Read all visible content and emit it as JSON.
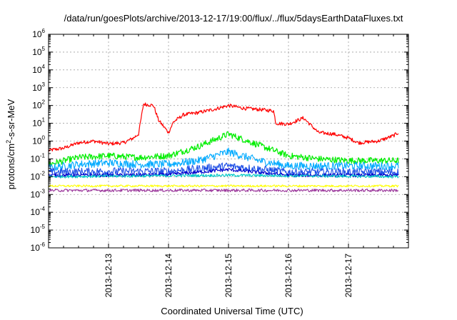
{
  "chart_data": {
    "type": "line",
    "title": "/data/run/goesPlots/archive/2013-12-17/19:00/flux/../flux/5daysEarthDataFluxes.txt",
    "xlabel": "Coordinated Universal Time (UTC)",
    "ylabel": {
      "base": "protons/cm",
      "sup": "2",
      "rest": "-s-sr-MeV"
    },
    "x_type": "time",
    "xlim": [
      "2013-12-12T00:00",
      "2013-12-18T00:00"
    ],
    "x_ticks": [
      {
        "label": "2013-12-13",
        "at": "2013-12-13T00:00"
      },
      {
        "label": "2013-12-14",
        "at": "2013-12-14T00:00"
      },
      {
        "label": "2013-12-15",
        "at": "2013-12-15T00:00"
      },
      {
        "label": "2013-12-16",
        "at": "2013-12-16T00:00"
      },
      {
        "label": "2013-12-17",
        "at": "2013-12-17T00:00"
      }
    ],
    "y_scale": "log",
    "ylim": [
      1e-06,
      1000000
    ],
    "y_ticks": [
      {
        "base": "10",
        "exp": "-6"
      },
      {
        "base": "10",
        "exp": "-5"
      },
      {
        "base": "10",
        "exp": "-4"
      },
      {
        "base": "10",
        "exp": "-3"
      },
      {
        "base": "10",
        "exp": "-2"
      },
      {
        "base": "10",
        "exp": "-1"
      },
      {
        "base": "10",
        "exp": "0"
      },
      {
        "base": "10",
        "exp": "1"
      },
      {
        "base": "10",
        "exp": "2"
      },
      {
        "base": "10",
        "exp": "3"
      },
      {
        "base": "10",
        "exp": "4"
      },
      {
        "base": "10",
        "exp": "5"
      },
      {
        "base": "10",
        "exp": "6"
      }
    ],
    "grid": true,
    "legend": "none",
    "series": [
      {
        "color": "#ff0000",
        "noise": 0.1,
        "points": [
          [
            "2013-12-12T00:00",
            0.3
          ],
          [
            "2013-12-12T06:00",
            0.4
          ],
          [
            "2013-12-12T12:00",
            0.8
          ],
          [
            "2013-12-12T18:00",
            1.0
          ],
          [
            "2013-12-13T00:00",
            0.7
          ],
          [
            "2013-12-13T06:00",
            0.8
          ],
          [
            "2013-12-13T10:00",
            1.5
          ],
          [
            "2013-12-13T12:00",
            2.5
          ],
          [
            "2013-12-13T14:00",
            120
          ],
          [
            "2013-12-13T18:00",
            100
          ],
          [
            "2013-12-13T20:00",
            15
          ],
          [
            "2013-12-14T00:00",
            3
          ],
          [
            "2013-12-14T02:00",
            12
          ],
          [
            "2013-12-14T06:00",
            30
          ],
          [
            "2013-12-14T12:00",
            40
          ],
          [
            "2013-12-14T18:00",
            60
          ],
          [
            "2013-12-15T00:00",
            100
          ],
          [
            "2013-12-15T06:00",
            70
          ],
          [
            "2013-12-15T12:00",
            60
          ],
          [
            "2013-12-15T18:00",
            50
          ],
          [
            "2013-12-15T19:00",
            10
          ],
          [
            "2013-12-16T00:00",
            9
          ],
          [
            "2013-12-16T06:00",
            20
          ],
          [
            "2013-12-16T12:00",
            3
          ],
          [
            "2013-12-16T18:00",
            2.5
          ],
          [
            "2013-12-17T00:00",
            1.5
          ],
          [
            "2013-12-17T04:00",
            0.8
          ],
          [
            "2013-12-17T12:00",
            1.0
          ],
          [
            "2013-12-17T18:00",
            2.0
          ],
          [
            "2013-12-17T20:00",
            3.0
          ]
        ]
      },
      {
        "color": "#00ee00",
        "noise": 0.18,
        "points": [
          [
            "2013-12-12T00:00",
            0.05
          ],
          [
            "2013-12-12T12:00",
            0.12
          ],
          [
            "2013-12-13T00:00",
            0.15
          ],
          [
            "2013-12-13T12:00",
            0.12
          ],
          [
            "2013-12-14T00:00",
            0.15
          ],
          [
            "2013-12-14T12:00",
            0.5
          ],
          [
            "2013-12-15T00:00",
            2.5
          ],
          [
            "2013-12-15T12:00",
            0.6
          ],
          [
            "2013-12-16T00:00",
            0.15
          ],
          [
            "2013-12-16T12:00",
            0.1
          ],
          [
            "2013-12-17T00:00",
            0.08
          ],
          [
            "2013-12-17T20:00",
            0.08
          ]
        ]
      },
      {
        "color": "#00aaff",
        "noise": 0.22,
        "points": [
          [
            "2013-12-12T00:00",
            0.03
          ],
          [
            "2013-12-12T12:00",
            0.05
          ],
          [
            "2013-12-13T00:00",
            0.06
          ],
          [
            "2013-12-13T12:00",
            0.05
          ],
          [
            "2013-12-14T00:00",
            0.05
          ],
          [
            "2013-12-14T12:00",
            0.08
          ],
          [
            "2013-12-15T00:00",
            0.25
          ],
          [
            "2013-12-15T12:00",
            0.08
          ],
          [
            "2013-12-16T00:00",
            0.04
          ],
          [
            "2013-12-17T00:00",
            0.04
          ],
          [
            "2013-12-17T20:00",
            0.04
          ]
        ]
      },
      {
        "color": "#1e50e6",
        "noise": 0.22,
        "points": [
          [
            "2013-12-12T00:00",
            0.018
          ],
          [
            "2013-12-13T00:00",
            0.02
          ],
          [
            "2013-12-14T00:00",
            0.02
          ],
          [
            "2013-12-15T00:00",
            0.04
          ],
          [
            "2013-12-16T00:00",
            0.018
          ],
          [
            "2013-12-17T00:00",
            0.018
          ],
          [
            "2013-12-17T20:00",
            0.018
          ]
        ]
      },
      {
        "color": "#0000cc",
        "noise": 0.1,
        "points": [
          [
            "2013-12-12T00:00",
            0.012
          ],
          [
            "2013-12-13T00:00",
            0.012
          ],
          [
            "2013-12-14T00:00",
            0.013
          ],
          [
            "2013-12-15T00:00",
            0.025
          ],
          [
            "2013-12-16T00:00",
            0.012
          ],
          [
            "2013-12-17T20:00",
            0.012
          ]
        ]
      },
      {
        "color": "#00c8c8",
        "noise": 0.08,
        "points": [
          [
            "2013-12-12T00:00",
            0.01
          ],
          [
            "2013-12-15T00:00",
            0.012
          ],
          [
            "2013-12-17T20:00",
            0.01
          ]
        ]
      },
      {
        "color": "#ffff00",
        "noise": 0.06,
        "points": [
          [
            "2013-12-12T00:00",
            0.003
          ],
          [
            "2013-12-17T20:00",
            0.003
          ]
        ]
      },
      {
        "color": "#993399",
        "noise": 0.08,
        "points": [
          [
            "2013-12-12T00:00",
            0.0017
          ],
          [
            "2013-12-17T20:00",
            0.0017
          ]
        ]
      }
    ]
  }
}
